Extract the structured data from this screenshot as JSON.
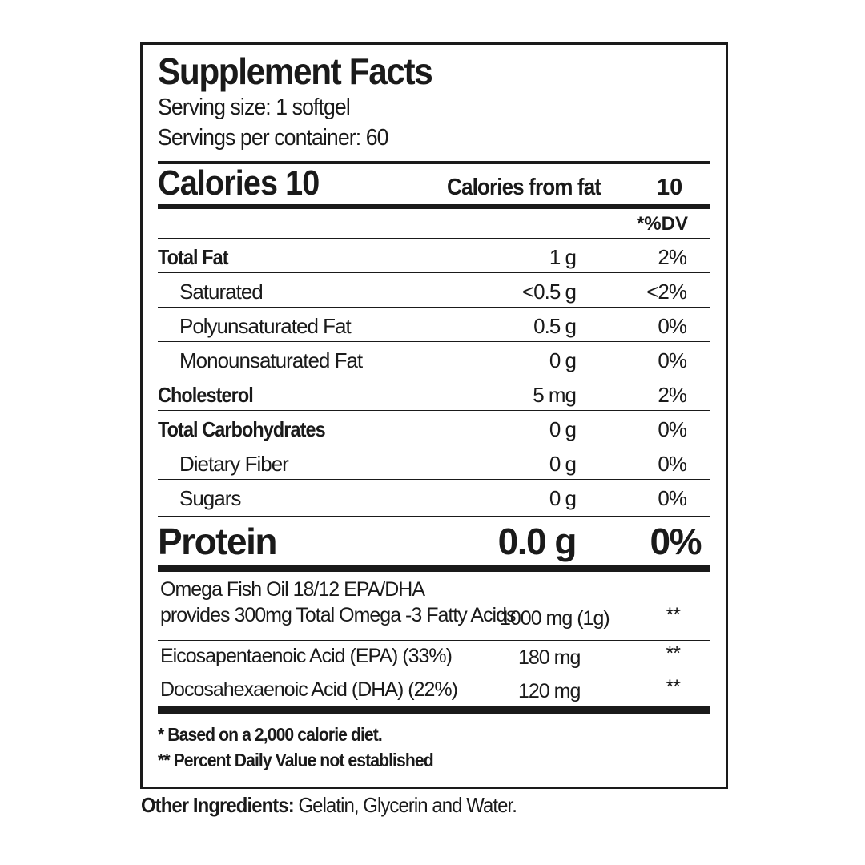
{
  "title": "Supplement Facts",
  "serving_size": "Serving size: 1 softgel",
  "servings_per_container": "Servings per container: 60",
  "calories_label": "Calories 10",
  "calories_from_fat_label": "Calories from fat",
  "calories_from_fat_value": "10",
  "dv_header": "*%DV",
  "rows": [
    {
      "name": "Total Fat",
      "amount": "1 g",
      "dv": "2%"
    },
    {
      "name": "Saturated",
      "amount": "<0.5 g",
      "dv": "<2%"
    },
    {
      "name": "Polyunsaturated Fat",
      "amount": "0.5 g",
      "dv": "0%"
    },
    {
      "name": "Monounsaturated Fat",
      "amount": "0 g",
      "dv": "0%"
    },
    {
      "name": "Cholesterol",
      "amount": "5 mg",
      "dv": "2%"
    },
    {
      "name": "Total Carbohydrates",
      "amount": "0 g",
      "dv": "0%"
    },
    {
      "name": "Dietary Fiber",
      "amount": "0 g",
      "dv": "0%"
    },
    {
      "name": "Sugars",
      "amount": "0 g",
      "dv": "0%"
    }
  ],
  "protein": {
    "name": "Protein",
    "amount": "0.0 g",
    "dv": "0%"
  },
  "omega": [
    {
      "line1": "Omega Fish Oil 18/12 EPA/DHA",
      "line2": "provides 300mg Total Omega -3 Fatty Acids",
      "amount": "1000 mg (1g)",
      "dv": "**"
    },
    {
      "name": "Eicosapentaenoic Acid (EPA) (33%)",
      "amount": "180 mg",
      "dv": "**"
    },
    {
      "name": "Docosahexaenoic Acid (DHA) (22%)",
      "amount": "120 mg",
      "dv": "**"
    }
  ],
  "footnotes": [
    "* Based on a 2,000 calorie diet.",
    "** Percent Daily Value not established"
  ],
  "other_ingredients": {
    "label": "Other Ingredients:",
    "text": " Gelatin, Glycerin and Water."
  }
}
